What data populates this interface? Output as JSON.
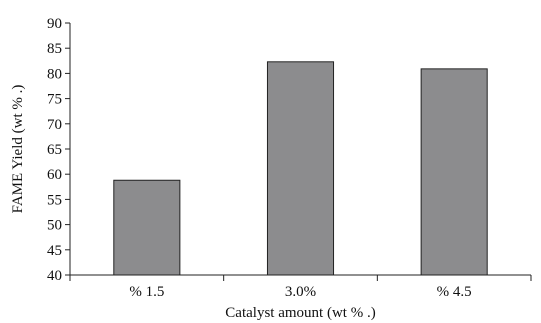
{
  "chart_data": {
    "type": "bar",
    "title": "",
    "xlabel": "Catalyst amount (wt % .)",
    "ylabel": "FAME Yield (wt % .)",
    "categories": [
      "% 1.5",
      "3.0%",
      "% 4.5"
    ],
    "values": [
      58.8,
      82.3,
      80.9
    ],
    "ylim": [
      40,
      90
    ],
    "yticks": [
      40,
      45,
      50,
      55,
      60,
      65,
      70,
      75,
      80,
      85,
      90
    ],
    "grid": false,
    "colors": {
      "bar": "#8c8c8e",
      "outline": "#222222"
    }
  }
}
